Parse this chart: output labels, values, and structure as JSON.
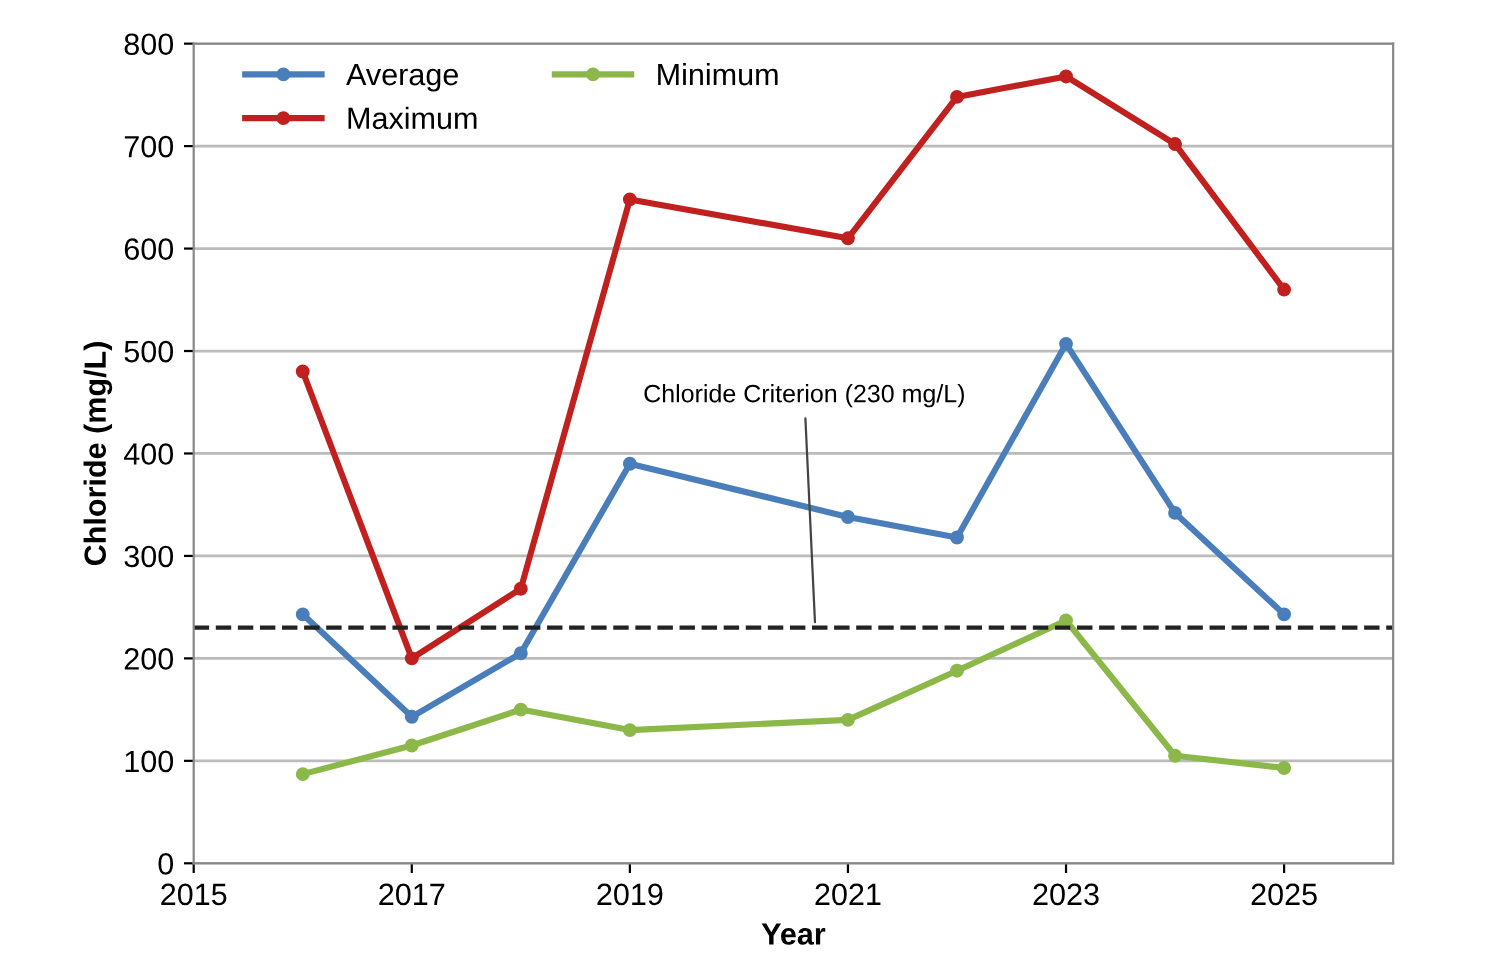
{
  "chart_data": {
    "type": "line",
    "xlabel": "Year",
    "ylabel": "Chloride (mg/L)",
    "x": [
      2016,
      2017,
      2018,
      2019,
      2021,
      2022,
      2023,
      2024,
      2025
    ],
    "series": [
      {
        "name": "Average",
        "color": "#4a7ebb",
        "values": [
          243,
          143,
          205,
          390,
          338,
          318,
          507,
          342,
          243
        ]
      },
      {
        "name": "Minimum",
        "color": "#8cb84a",
        "values": [
          87,
          115,
          150,
          130,
          140,
          188,
          237,
          105,
          93
        ]
      },
      {
        "name": "Maximum",
        "color": "#c0201e",
        "values": [
          480,
          200,
          268,
          648,
          610,
          748,
          768,
          702,
          560
        ]
      }
    ],
    "xlim": [
      2015,
      2026
    ],
    "xticks": [
      2015,
      2017,
      2019,
      2021,
      2023,
      2025
    ],
    "ylim": [
      0,
      800
    ],
    "yticks": [
      0,
      100,
      200,
      300,
      400,
      500,
      600,
      700,
      800
    ],
    "grid": "y",
    "legend": "top left",
    "marker": "circle",
    "line_style": "solid",
    "ref_lines": [
      {
        "axis": "y",
        "value": 230,
        "color": "#222222",
        "line_style": "dashed"
      }
    ],
    "annotations": [
      {
        "text": "Chloride Criterion (230 mg/L)",
        "x": 2020.7,
        "y": 230
      }
    ]
  }
}
